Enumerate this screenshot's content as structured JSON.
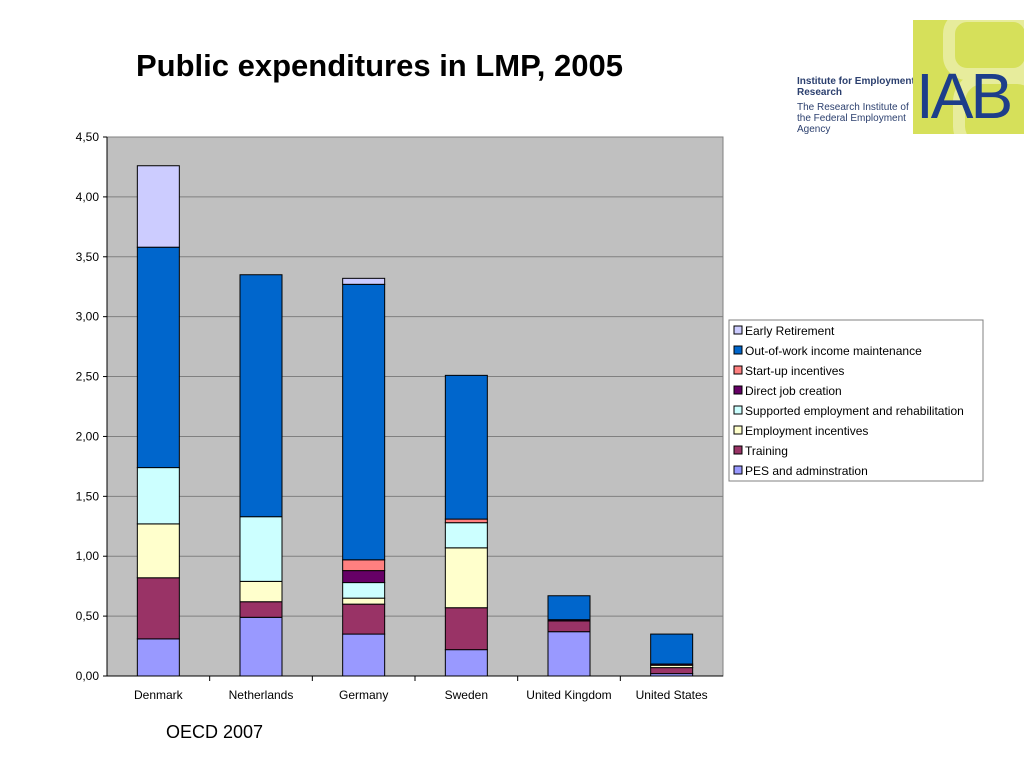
{
  "slide": {
    "title": "Public expenditures in LMP, 2005",
    "source_note": "OECD 2007"
  },
  "logo": {
    "org_name": "Institute for Employment Research",
    "org_subtitle": "The Research Institute of the Federal Employment Agency",
    "letters": "IAB",
    "colors": {
      "background": "#d6e05a",
      "letters": "#1d3e8a",
      "text": "#2b3f6e"
    }
  },
  "chart_data": {
    "type": "bar",
    "stacked": true,
    "title": "",
    "xlabel": "",
    "ylabel": "",
    "ylim": [
      0,
      4.5
    ],
    "y_ticks": [
      "0,00",
      "0,50",
      "1,00",
      "1,50",
      "2,00",
      "2,50",
      "3,00",
      "3,50",
      "4,00",
      "4,50"
    ],
    "y_tick_values": [
      0,
      0.5,
      1.0,
      1.5,
      2.0,
      2.5,
      3.0,
      3.5,
      4.0,
      4.5
    ],
    "grid": true,
    "plot_background": "#c0c0c0",
    "legend_position": "right",
    "categories": [
      "Denmark",
      "Netherlands",
      "Germany",
      "Sweden",
      "United Kingdom",
      "United States"
    ],
    "series": [
      {
        "name": "PES and adminstration",
        "color": "#9999ff",
        "values": [
          0.31,
          0.49,
          0.35,
          0.22,
          0.37,
          0.02
        ]
      },
      {
        "name": "Training",
        "color": "#993366",
        "values": [
          0.51,
          0.13,
          0.25,
          0.35,
          0.09,
          0.05
        ]
      },
      {
        "name": "Employment incentives",
        "color": "#ffffcc",
        "values": [
          0.45,
          0.17,
          0.05,
          0.5,
          0.0,
          0.02
        ]
      },
      {
        "name": "Supported employment and rehabilitation",
        "color": "#ccffff",
        "values": [
          0.47,
          0.54,
          0.13,
          0.21,
          0.0,
          0.0
        ]
      },
      {
        "name": "Direct job creation",
        "color": "#660066",
        "values": [
          0.0,
          0.0,
          0.1,
          0.0,
          0.01,
          0.01
        ]
      },
      {
        "name": "Start-up incentives",
        "color": "#ff8080",
        "values": [
          0.0,
          0.0,
          0.09,
          0.03,
          0.0,
          0.0
        ]
      },
      {
        "name": "Out-of-work income maintenance",
        "color": "#0066cc",
        "values": [
          1.84,
          2.02,
          2.3,
          1.2,
          0.2,
          0.25
        ]
      },
      {
        "name": "Early Retirement",
        "color": "#ccccff",
        "values": [
          0.68,
          0.0,
          0.05,
          0.0,
          0.0,
          0.0
        ]
      }
    ],
    "legend_order": [
      "Early Retirement",
      "Out-of-work income maintenance",
      "Start-up incentives",
      "Direct job creation",
      "Supported employment and rehabilitation",
      "Employment incentives",
      "Training",
      "PES and adminstration"
    ]
  }
}
